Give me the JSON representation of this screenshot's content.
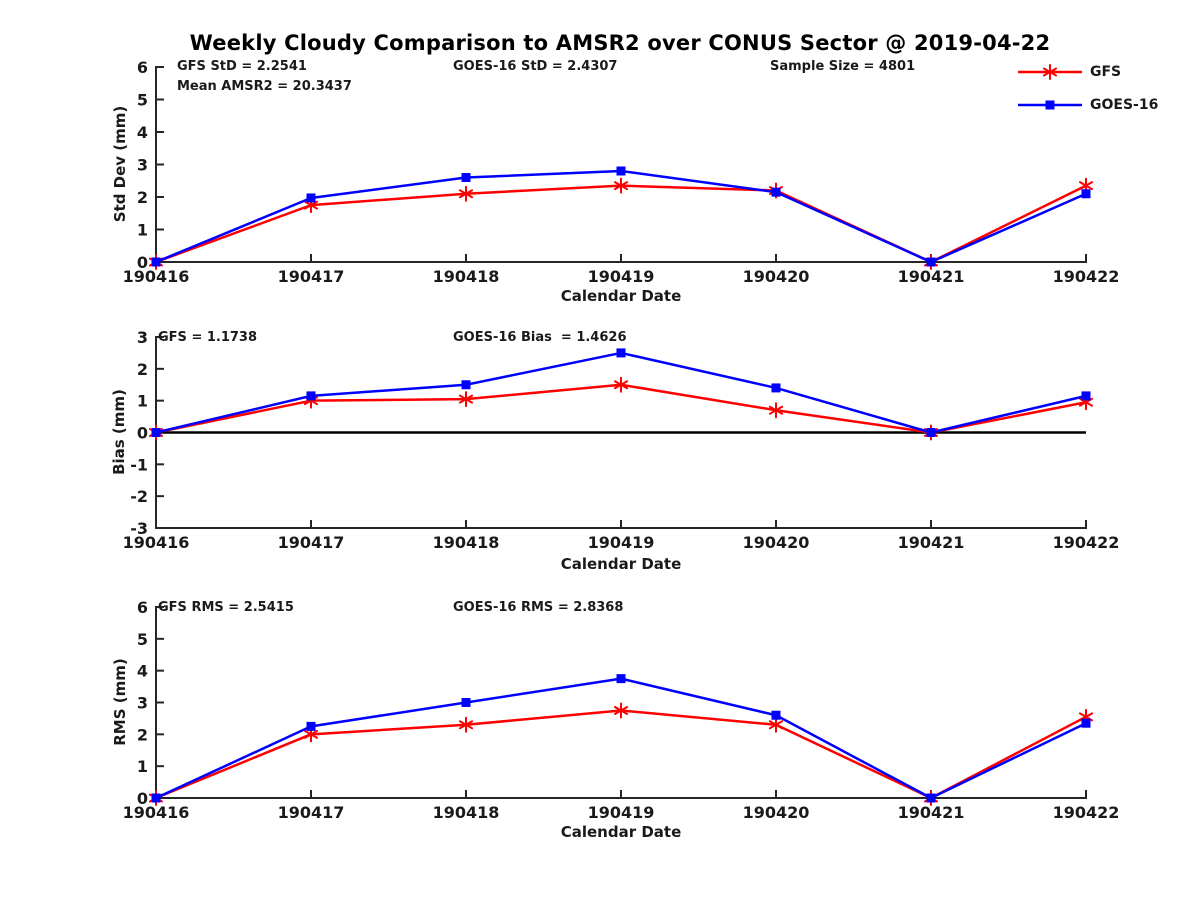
{
  "title": "Weekly Cloudy Comparison to AMSR2 over CONUS Sector @ 2019-04-22",
  "legend": {
    "items": [
      {
        "label": "GFS",
        "marker": "red-asterisk-line"
      },
      {
        "label": "GOES-16",
        "marker": "blue-square-line"
      }
    ]
  },
  "colors": {
    "gfs": "#ff0000",
    "goes16": "#0000ff",
    "axis": "#262626",
    "zero_line": "#000000"
  },
  "chart_data": [
    {
      "id": "stddev",
      "type": "line",
      "ylabel": "Std Dev (mm)",
      "xlabel": "Calendar Date",
      "x_categories": [
        "190416",
        "190417",
        "190418",
        "190419",
        "190420",
        "190421",
        "190422"
      ],
      "ylim": [
        0,
        6
      ],
      "yticks": [
        0,
        1,
        2,
        3,
        4,
        5,
        6
      ],
      "grid": false,
      "series": [
        {
          "name": "GFS",
          "color": "#ff0000",
          "marker": "asterisk",
          "values": [
            0,
            1.75,
            2.1,
            2.35,
            2.2,
            0,
            2.35
          ]
        },
        {
          "name": "GOES-16",
          "color": "#0000ff",
          "marker": "square",
          "values": [
            0,
            1.97,
            2.6,
            2.8,
            2.15,
            0,
            2.1
          ]
        }
      ],
      "annotations": [
        {
          "text": "GFS StD = 2.2541"
        },
        {
          "text": "Mean AMSR2 = 20.3437"
        },
        {
          "text": "GOES-16 StD = 2.4307"
        },
        {
          "text": "Sample Size = 4801"
        }
      ]
    },
    {
      "id": "bias",
      "type": "line",
      "ylabel": "Bias (mm)",
      "xlabel": "Calendar Date",
      "x_categories": [
        "190416",
        "190417",
        "190418",
        "190419",
        "190420",
        "190421",
        "190422"
      ],
      "ylim": [
        -3,
        3
      ],
      "yticks": [
        -3,
        -2,
        -1,
        0,
        1,
        2,
        3
      ],
      "zero_line": true,
      "grid": false,
      "series": [
        {
          "name": "GFS",
          "color": "#ff0000",
          "marker": "asterisk",
          "values": [
            0,
            1.0,
            1.05,
            1.5,
            0.7,
            0,
            0.95
          ]
        },
        {
          "name": "GOES-16",
          "color": "#0000ff",
          "marker": "square",
          "values": [
            0,
            1.15,
            1.5,
            2.5,
            1.4,
            0,
            1.15
          ]
        }
      ],
      "annotations": [
        {
          "text": "GFS = 1.1738"
        },
        {
          "text": "GOES-16 Bias  = 1.4626"
        }
      ]
    },
    {
      "id": "rms",
      "type": "line",
      "ylabel": "RMS (mm)",
      "xlabel": "Calendar Date",
      "x_categories": [
        "190416",
        "190417",
        "190418",
        "190419",
        "190420",
        "190421",
        "190422"
      ],
      "ylim": [
        0,
        6
      ],
      "yticks": [
        0,
        1,
        2,
        3,
        4,
        5,
        6
      ],
      "grid": false,
      "series": [
        {
          "name": "GFS",
          "color": "#ff0000",
          "marker": "asterisk",
          "values": [
            0,
            2.0,
            2.3,
            2.75,
            2.3,
            0,
            2.55
          ]
        },
        {
          "name": "GOES-16",
          "color": "#0000ff",
          "marker": "square",
          "values": [
            0,
            2.25,
            3.0,
            3.75,
            2.6,
            0,
            2.35
          ]
        }
      ],
      "annotations": [
        {
          "text": "GFS RMS = 2.5415"
        },
        {
          "text": "GOES-16 RMS = 2.8368"
        }
      ]
    }
  ]
}
